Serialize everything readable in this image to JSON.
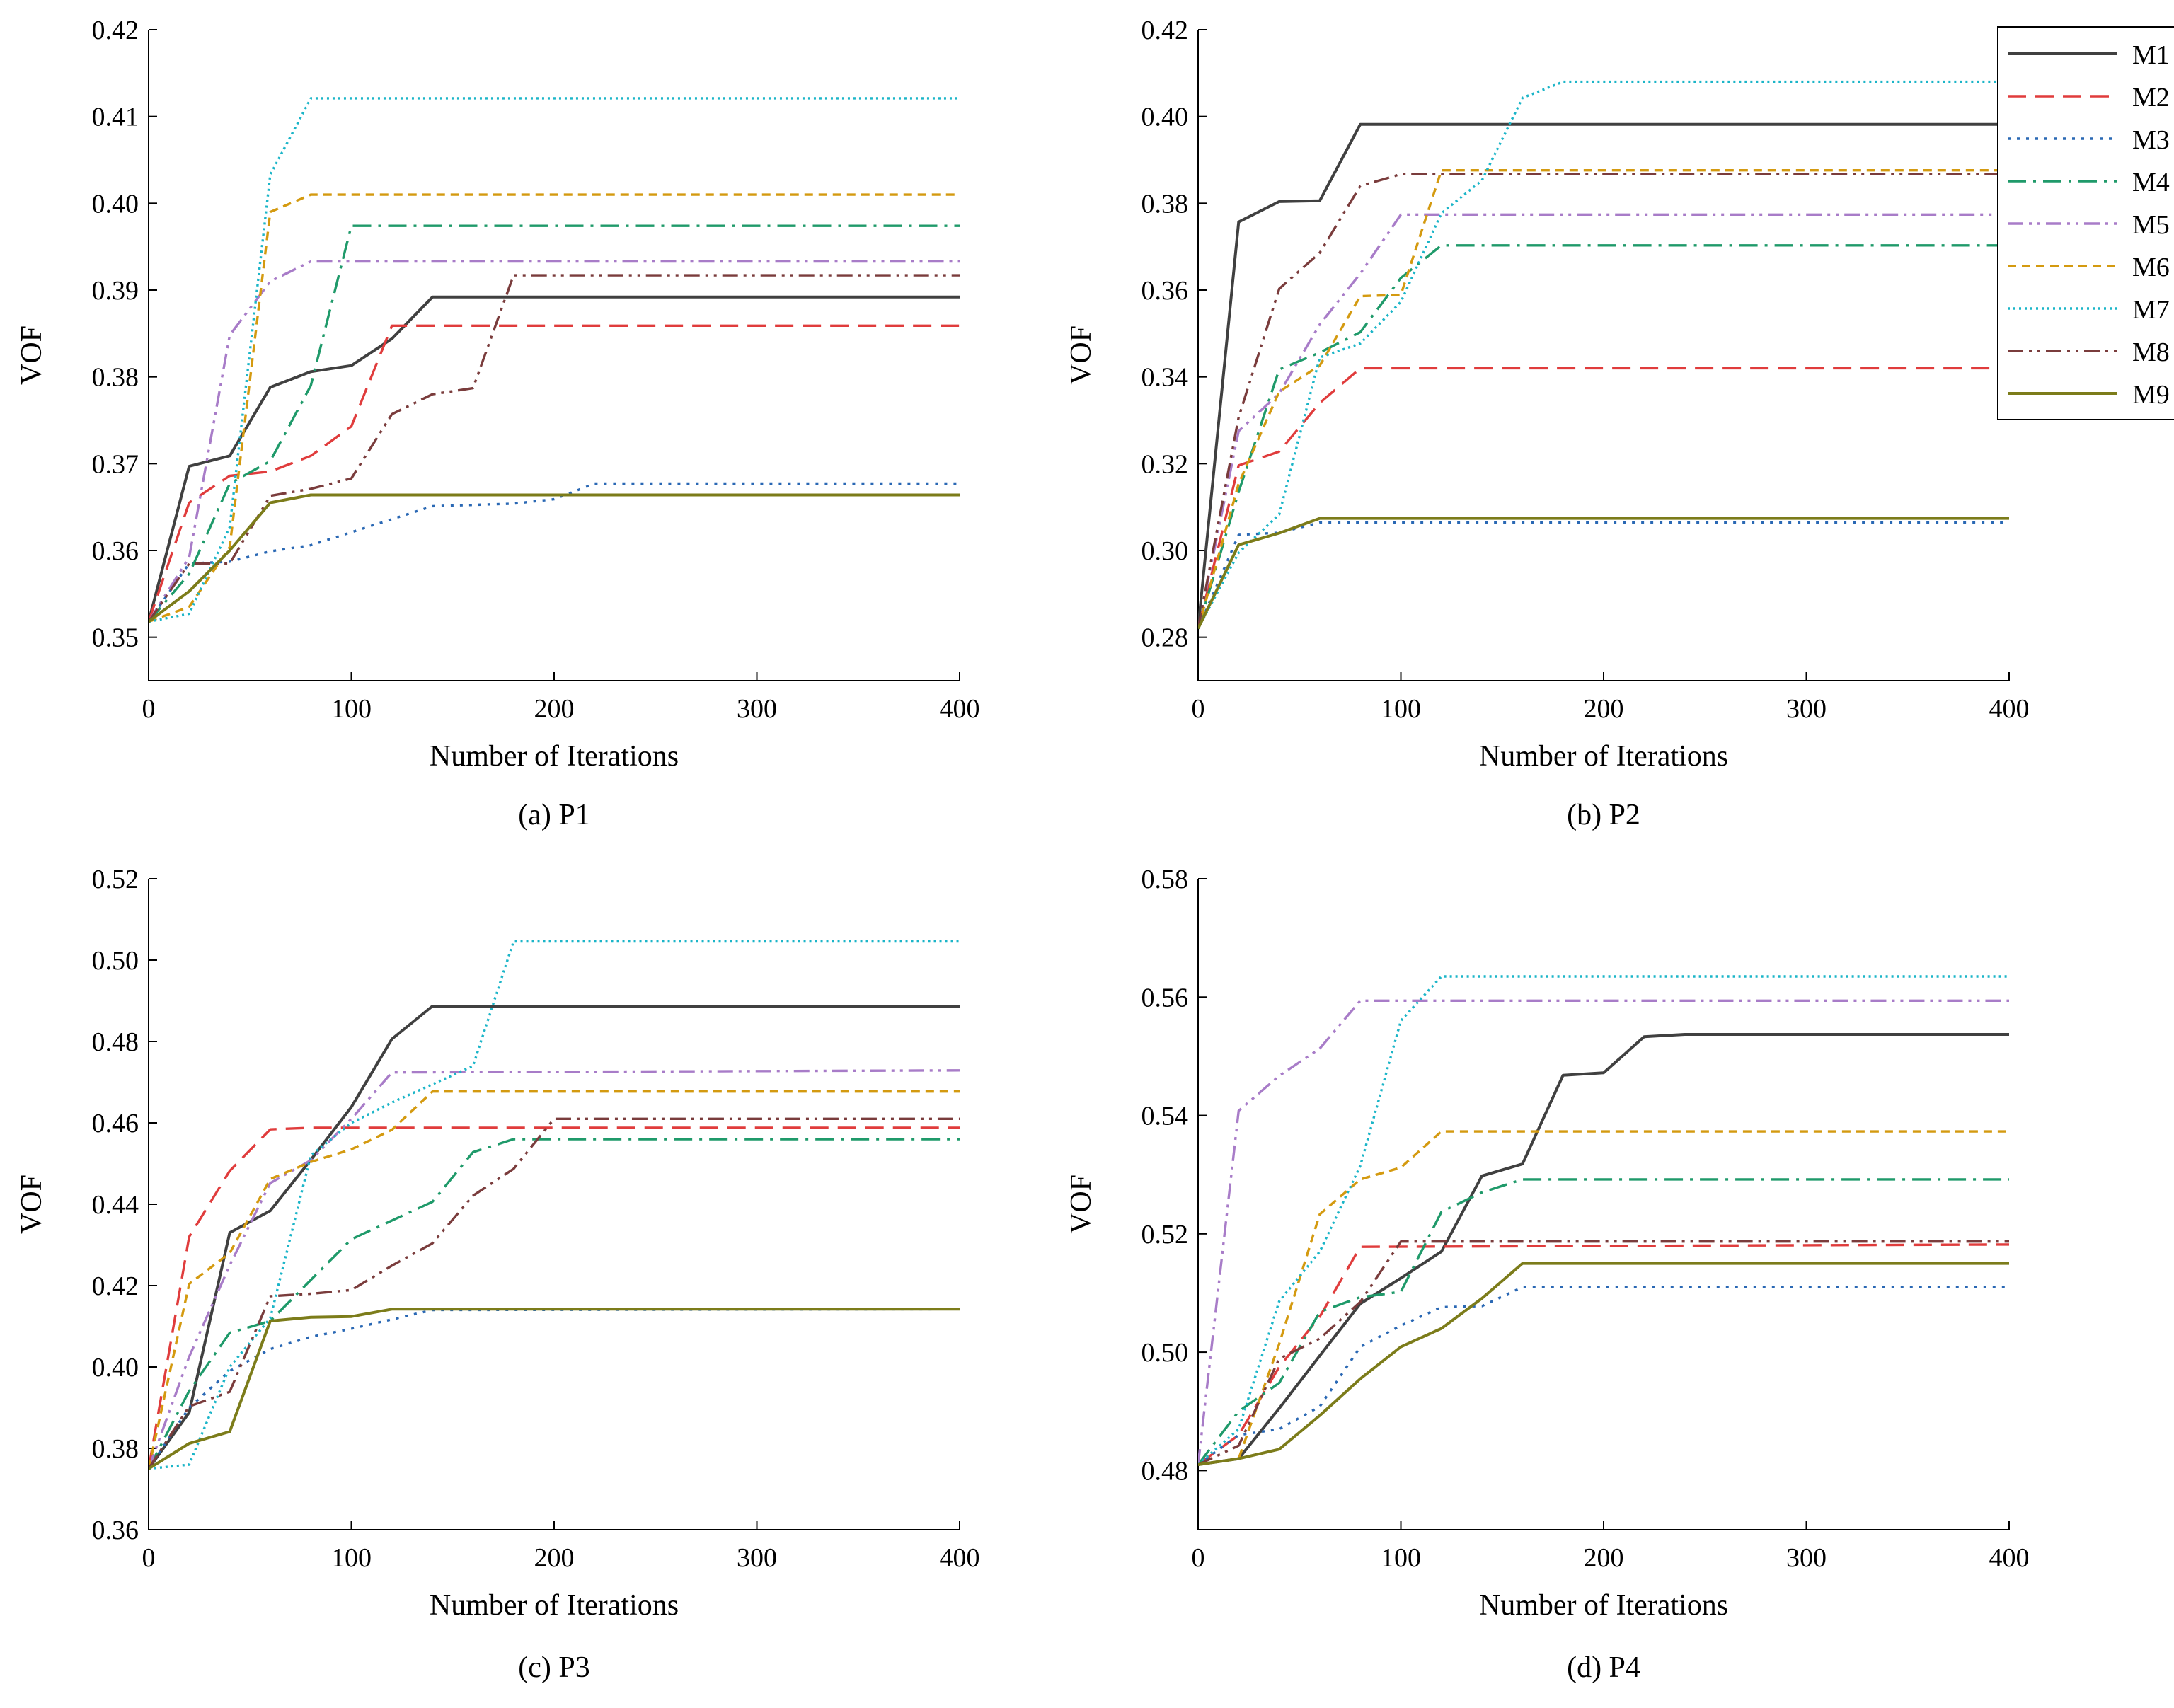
{
  "figure": {
    "series_style": [
      {
        "name": "M1",
        "color": "#404040",
        "dash": "solid"
      },
      {
        "name": "M2",
        "color": "#e03c3c",
        "dash": "dashed"
      },
      {
        "name": "M3",
        "color": "#2a68b4",
        "dash": "dotted"
      },
      {
        "name": "M4",
        "color": "#1f9a6a",
        "dash": "dashdot"
      },
      {
        "name": "M5",
        "color": "#a87cc8",
        "dash": "dashdotdot"
      },
      {
        "name": "M6",
        "color": "#d49a10",
        "dash": "shortdash"
      },
      {
        "name": "M7",
        "color": "#1bb5c8",
        "dash": "finedot"
      },
      {
        "name": "M8",
        "color": "#7a3c3c",
        "dash": "dashdotdot"
      },
      {
        "name": "M9",
        "color": "#7c7c1a",
        "dash": "solid"
      }
    ]
  },
  "chart_data": [
    {
      "type": "line",
      "caption": "(a) P1",
      "xlabel": "Number of Iterations",
      "ylabel": "VOF",
      "xlim": [
        0,
        400
      ],
      "ylim": [
        0.345,
        0.42
      ],
      "xticks": [
        0,
        100,
        200,
        300,
        400
      ],
      "xtick_labels": [
        "0",
        "100",
        "200",
        "300",
        "400"
      ],
      "yticks": [
        0.35,
        0.36,
        0.37,
        0.38,
        0.39,
        0.4,
        0.41,
        0.42
      ],
      "ytick_labels": [
        "0.35",
        "0.36",
        "0.37",
        "0.38",
        "0.39",
        "0.40",
        "0.41",
        "0.42"
      ],
      "legend": false,
      "series": [
        {
          "name": "M1",
          "x": [
            0,
            20,
            40,
            60,
            80,
            100,
            120,
            140,
            400
          ],
          "y": [
            0.3518,
            0.3697,
            0.3709,
            0.3788,
            0.3806,
            0.3813,
            0.3844,
            0.3892,
            0.3892
          ]
        },
        {
          "name": "M2",
          "x": [
            0,
            20,
            40,
            60,
            80,
            100,
            120,
            400
          ],
          "y": [
            0.3518,
            0.3655,
            0.3686,
            0.3691,
            0.3709,
            0.3743,
            0.3859,
            0.3859
          ]
        },
        {
          "name": "M3",
          "x": [
            0,
            20,
            40,
            60,
            80,
            100,
            140,
            180,
            200,
            220,
            400
          ],
          "y": [
            0.3518,
            0.3585,
            0.3587,
            0.3599,
            0.3606,
            0.3621,
            0.3651,
            0.3654,
            0.3659,
            0.3677,
            0.3677
          ]
        },
        {
          "name": "M4",
          "x": [
            0,
            20,
            40,
            60,
            80,
            100,
            400
          ],
          "y": [
            0.3518,
            0.3573,
            0.3677,
            0.3703,
            0.379,
            0.3974,
            0.3974
          ]
        },
        {
          "name": "M5",
          "x": [
            0,
            20,
            40,
            60,
            80,
            400
          ],
          "y": [
            0.3518,
            0.3592,
            0.3848,
            0.391,
            0.3933,
            0.3933
          ]
        },
        {
          "name": "M6",
          "x": [
            0,
            20,
            40,
            60,
            80,
            400
          ],
          "y": [
            0.3518,
            0.3535,
            0.3604,
            0.399,
            0.401,
            0.401
          ]
        },
        {
          "name": "M7",
          "x": [
            0,
            20,
            40,
            60,
            80,
            400
          ],
          "y": [
            0.3518,
            0.3527,
            0.3627,
            0.4033,
            0.4121,
            0.4121
          ]
        },
        {
          "name": "M8",
          "x": [
            0,
            20,
            40,
            60,
            80,
            100,
            120,
            140,
            160,
            180,
            400
          ],
          "y": [
            0.3518,
            0.3585,
            0.3585,
            0.3663,
            0.3671,
            0.3683,
            0.3757,
            0.378,
            0.3787,
            0.3917,
            0.3917
          ]
        },
        {
          "name": "M9",
          "x": [
            0,
            20,
            40,
            60,
            80,
            400
          ],
          "y": [
            0.3518,
            0.3553,
            0.36,
            0.3655,
            0.3664,
            0.3664
          ]
        }
      ]
    },
    {
      "type": "line",
      "caption": "(b) P2",
      "xlabel": "Number of Iterations",
      "ylabel": "VOF",
      "xlim": [
        0,
        400
      ],
      "ylim": [
        0.27,
        0.42
      ],
      "xticks": [
        0,
        100,
        200,
        300,
        400
      ],
      "xtick_labels": [
        "0",
        "100",
        "200",
        "300",
        "400"
      ],
      "yticks": [
        0.28,
        0.3,
        0.32,
        0.34,
        0.36,
        0.38,
        0.4,
        0.42
      ],
      "ytick_labels": [
        "0.28",
        "0.30",
        "0.32",
        "0.34",
        "0.36",
        "0.38",
        "0.40",
        "0.42"
      ],
      "legend": true,
      "legend_position": "top-right",
      "series": [
        {
          "name": "M1",
          "x": [
            0,
            20,
            40,
            60,
            80,
            400
          ],
          "y": [
            0.282,
            0.3757,
            0.3804,
            0.3806,
            0.3982,
            0.3982
          ]
        },
        {
          "name": "M2",
          "x": [
            0,
            20,
            40,
            60,
            80,
            400
          ],
          "y": [
            0.282,
            0.3196,
            0.3228,
            0.334,
            0.342,
            0.342
          ]
        },
        {
          "name": "M3",
          "x": [
            0,
            20,
            40,
            60,
            400
          ],
          "y": [
            0.282,
            0.3036,
            0.3041,
            0.3064,
            0.3064
          ]
        },
        {
          "name": "M4",
          "x": [
            0,
            20,
            40,
            60,
            80,
            100,
            120,
            400
          ],
          "y": [
            0.282,
            0.3135,
            0.3417,
            0.3456,
            0.3503,
            0.3628,
            0.3703,
            0.3703
          ]
        },
        {
          "name": "M5",
          "x": [
            0,
            20,
            40,
            60,
            80,
            100,
            400
          ],
          "y": [
            0.282,
            0.3275,
            0.3362,
            0.3521,
            0.3638,
            0.3774,
            0.3774
          ]
        },
        {
          "name": "M6",
          "x": [
            0,
            20,
            40,
            60,
            80,
            100,
            120,
            400
          ],
          "y": [
            0.282,
            0.3154,
            0.3366,
            0.3426,
            0.3586,
            0.3589,
            0.3876,
            0.3876
          ]
        },
        {
          "name": "M7",
          "x": [
            0,
            20,
            40,
            60,
            80,
            100,
            120,
            140,
            160,
            180,
            400
          ],
          "y": [
            0.282,
            0.2995,
            0.3083,
            0.3445,
            0.3477,
            0.3573,
            0.3777,
            0.3853,
            0.4043,
            0.408,
            0.408
          ]
        },
        {
          "name": "M8",
          "x": [
            0,
            20,
            40,
            60,
            80,
            100,
            400
          ],
          "y": [
            0.282,
            0.3307,
            0.3603,
            0.3686,
            0.384,
            0.3867,
            0.3867
          ]
        },
        {
          "name": "M9",
          "x": [
            0,
            20,
            40,
            60,
            400
          ],
          "y": [
            0.282,
            0.3013,
            0.304,
            0.3074,
            0.3074
          ]
        }
      ]
    },
    {
      "type": "line",
      "caption": "(c) P3",
      "xlabel": "Number of Iterations",
      "ylabel": "VOF",
      "xlim": [
        0,
        400
      ],
      "ylim": [
        0.36,
        0.52
      ],
      "xticks": [
        0,
        100,
        200,
        300,
        400
      ],
      "xtick_labels": [
        "0",
        "100",
        "200",
        "300",
        "400"
      ],
      "yticks": [
        0.36,
        0.38,
        0.4,
        0.42,
        0.44,
        0.46,
        0.48,
        0.5,
        0.52
      ],
      "ytick_labels": [
        "0.36",
        "0.38",
        "0.40",
        "0.42",
        "0.44",
        "0.46",
        "0.48",
        "0.50",
        "0.52"
      ],
      "legend": false,
      "series": [
        {
          "name": "M1",
          "x": [
            0,
            20,
            40,
            60,
            80,
            100,
            120,
            140,
            400
          ],
          "y": [
            0.375,
            0.3888,
            0.433,
            0.4384,
            0.4509,
            0.4639,
            0.4806,
            0.4887,
            0.4887
          ]
        },
        {
          "name": "M2",
          "x": [
            0,
            20,
            40,
            60,
            80,
            400
          ],
          "y": [
            0.375,
            0.432,
            0.4482,
            0.4584,
            0.4588,
            0.4588
          ]
        },
        {
          "name": "M3",
          "x": [
            0,
            20,
            40,
            60,
            80,
            100,
            140,
            400
          ],
          "y": [
            0.375,
            0.39,
            0.399,
            0.4044,
            0.4074,
            0.4094,
            0.414,
            0.4142
          ]
        },
        {
          "name": "M4",
          "x": [
            0,
            20,
            40,
            60,
            80,
            100,
            120,
            140,
            160,
            180,
            400
          ],
          "y": [
            0.375,
            0.3941,
            0.4084,
            0.4113,
            0.4214,
            0.4314,
            0.436,
            0.4406,
            0.4528,
            0.456,
            0.456
          ]
        },
        {
          "name": "M5",
          "x": [
            0,
            20,
            40,
            60,
            80,
            100,
            120,
            400
          ],
          "y": [
            0.375,
            0.4025,
            0.425,
            0.4452,
            0.4508,
            0.461,
            0.4724,
            0.4729
          ]
        },
        {
          "name": "M6",
          "x": [
            0,
            20,
            40,
            60,
            80,
            100,
            120,
            140,
            400
          ],
          "y": [
            0.375,
            0.4204,
            0.428,
            0.4462,
            0.4504,
            0.4535,
            0.4583,
            0.4677,
            0.4677
          ]
        },
        {
          "name": "M7",
          "x": [
            0,
            20,
            40,
            60,
            80,
            100,
            120,
            160,
            180,
            400
          ],
          "y": [
            0.375,
            0.376,
            0.4,
            0.412,
            0.452,
            0.46,
            0.465,
            0.474,
            0.5046,
            0.5046
          ]
        },
        {
          "name": "M8",
          "x": [
            0,
            20,
            40,
            60,
            80,
            100,
            120,
            140,
            160,
            180,
            200,
            400
          ],
          "y": [
            0.375,
            0.3903,
            0.3939,
            0.4174,
            0.418,
            0.4189,
            0.4249,
            0.4304,
            0.4421,
            0.4487,
            0.461,
            0.461
          ]
        },
        {
          "name": "M9",
          "x": [
            0,
            20,
            40,
            60,
            80,
            100,
            120,
            400
          ],
          "y": [
            0.375,
            0.3812,
            0.3841,
            0.4113,
            0.4122,
            0.4124,
            0.4142,
            0.4142
          ]
        }
      ]
    },
    {
      "type": "line",
      "caption": "(d) P4",
      "xlabel": "Number of Iterations",
      "ylabel": "VOF",
      "xlim": [
        0,
        400
      ],
      "ylim": [
        0.47,
        0.58
      ],
      "xticks": [
        0,
        100,
        200,
        300,
        400
      ],
      "xtick_labels": [
        "0",
        "100",
        "200",
        "300",
        "400"
      ],
      "yticks": [
        0.48,
        0.5,
        0.52,
        0.54,
        0.56,
        0.58
      ],
      "ytick_labels": [
        "0.48",
        "0.50",
        "0.52",
        "0.54",
        "0.56",
        "0.58"
      ],
      "legend": false,
      "series": [
        {
          "name": "M1",
          "x": [
            0,
            20,
            40,
            60,
            80,
            100,
            120,
            140,
            160,
            180,
            200,
            220,
            240,
            400
          ],
          "y": [
            0.481,
            0.482,
            0.4905,
            0.4994,
            0.5082,
            0.5125,
            0.517,
            0.5298,
            0.5318,
            0.5468,
            0.5472,
            0.5533,
            0.5537,
            0.5537
          ]
        },
        {
          "name": "M2",
          "x": [
            0,
            20,
            40,
            60,
            80,
            400
          ],
          "y": [
            0.481,
            0.486,
            0.4975,
            0.506,
            0.5178,
            0.5182
          ]
        },
        {
          "name": "M3",
          "x": [
            0,
            20,
            40,
            60,
            80,
            100,
            120,
            140,
            160,
            400
          ],
          "y": [
            0.481,
            0.486,
            0.487,
            0.4908,
            0.5009,
            0.5045,
            0.5076,
            0.5078,
            0.511,
            0.511
          ]
        },
        {
          "name": "M4",
          "x": [
            0,
            20,
            40,
            60,
            80,
            100,
            120,
            140,
            160,
            400
          ],
          "y": [
            0.481,
            0.49,
            0.4948,
            0.5068,
            0.5093,
            0.5102,
            0.5237,
            0.527,
            0.5292,
            0.5292
          ]
        },
        {
          "name": "M5",
          "x": [
            0,
            20,
            40,
            60,
            80,
            400
          ],
          "y": [
            0.481,
            0.5408,
            0.5467,
            0.5513,
            0.5594,
            0.5594
          ]
        },
        {
          "name": "M6",
          "x": [
            0,
            20,
            40,
            60,
            80,
            100,
            120,
            400
          ],
          "y": [
            0.481,
            0.482,
            0.5014,
            0.5233,
            0.5292,
            0.5312,
            0.5373,
            0.5373
          ]
        },
        {
          "name": "M7",
          "x": [
            0,
            20,
            40,
            60,
            80,
            100,
            120,
            400
          ],
          "y": [
            0.481,
            0.487,
            0.5086,
            0.517,
            0.5315,
            0.556,
            0.5635,
            0.5635
          ]
        },
        {
          "name": "M8",
          "x": [
            0,
            20,
            40,
            60,
            80,
            100,
            400
          ],
          "y": [
            0.481,
            0.4842,
            0.4989,
            0.5023,
            0.5085,
            0.5187,
            0.5187
          ]
        },
        {
          "name": "M9",
          "x": [
            0,
            20,
            40,
            60,
            80,
            100,
            120,
            140,
            160,
            400
          ],
          "y": [
            0.481,
            0.482,
            0.4836,
            0.4893,
            0.4955,
            0.5009,
            0.504,
            0.5091,
            0.515,
            0.515
          ]
        }
      ]
    }
  ]
}
